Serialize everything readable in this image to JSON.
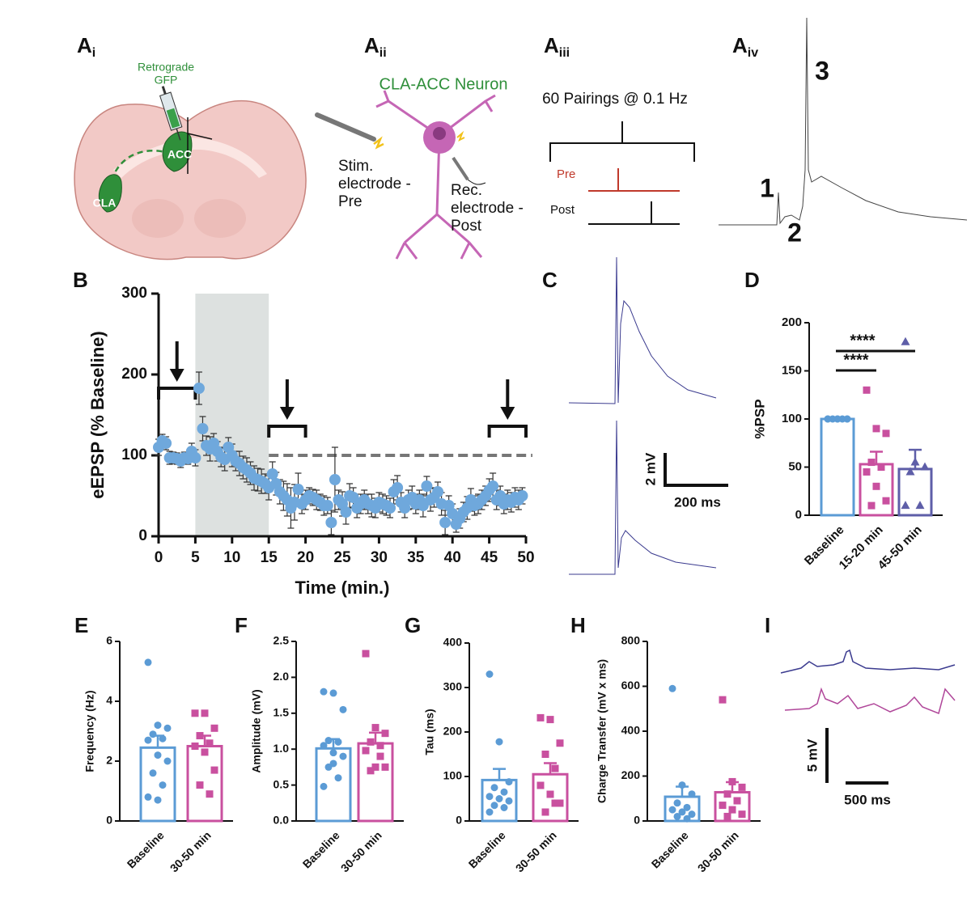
{
  "panels": [
    {
      "label": "A",
      "sub": "i"
    },
    {
      "label": "A",
      "sub": "ii"
    },
    {
      "label": "A",
      "sub": "iii"
    },
    {
      "label": "A",
      "sub": "iv"
    },
    {
      "label": "B"
    },
    {
      "label": "C"
    },
    {
      "label": "D"
    },
    {
      "label": "E"
    },
    {
      "label": "F"
    },
    {
      "label": "G"
    },
    {
      "label": "H"
    },
    {
      "label": "I"
    }
  ],
  "diagram": {
    "retrograde": "Retrograde",
    "gfp": "GFP",
    "acc": "ACC",
    "cla": "CLA",
    "neuron": "CLA-ACC Neuron",
    "stim": [
      "Stim.",
      "electrode -",
      "Pre"
    ],
    "rec": [
      "Rec.",
      "electrode -",
      "Post"
    ],
    "pairings": "60 Pairings @ 0.1 Hz",
    "pre": "Pre",
    "post": "Post",
    "trace_labels": [
      "1",
      "2",
      "3"
    ]
  },
  "scale_bars": {
    "c": [
      "2 mV",
      "200 ms"
    ],
    "i": [
      "5 mV",
      "500 ms"
    ]
  },
  "chart_data": [
    {
      "type": "scatter",
      "ylabel": "eEPSP (% Baseline)",
      "xlabel": "Time (min.)",
      "color": "#6fa8dc",
      "x": [
        0,
        0.5,
        1,
        1.5,
        2,
        2.5,
        3,
        3.5,
        4,
        4.5,
        5,
        5.5,
        6,
        6.5,
        7,
        7.5,
        8,
        8.5,
        9,
        9.5,
        10,
        10.5,
        11,
        11.5,
        12,
        12.5,
        13,
        13.5,
        14,
        14.5,
        15,
        15.5,
        16,
        16.5,
        17,
        17.5,
        18,
        18.5,
        19,
        19.5,
        20,
        20.5,
        21,
        21.5,
        22,
        22.5,
        23,
        23.5,
        24,
        24.5,
        25,
        25.5,
        26,
        26.5,
        27,
        27.5,
        28,
        28.5,
        29,
        29.5,
        30,
        30.5,
        31,
        31.5,
        32,
        32.5,
        33,
        33.5,
        34,
        34.5,
        35,
        35.5,
        36,
        36.5,
        37,
        37.5,
        38,
        38.5,
        39,
        39.5,
        40,
        40.5,
        41,
        41.5,
        42,
        42.5,
        43,
        43.5,
        44,
        44.5,
        45,
        45.5,
        46,
        46.5,
        47,
        47.5,
        48,
        48.5,
        49,
        49.5
      ],
      "values": [
        110,
        118,
        115,
        97,
        97,
        96,
        93,
        97,
        96,
        105,
        97,
        183,
        133,
        112,
        108,
        115,
        105,
        98,
        95,
        110,
        100,
        93,
        90,
        85,
        82,
        78,
        72,
        70,
        68,
        65,
        60,
        77,
        65,
        55,
        50,
        45,
        35,
        42,
        58,
        40,
        45,
        50,
        48,
        45,
        42,
        38,
        38,
        17,
        70,
        45,
        40,
        30,
        50,
        48,
        35,
        40,
        45,
        40,
        38,
        35,
        42,
        40,
        38,
        35,
        55,
        60,
        42,
        35,
        45,
        48,
        40,
        45,
        38,
        62,
        45,
        48,
        55,
        40,
        17,
        38,
        28,
        15,
        22,
        30,
        35,
        45,
        38,
        40,
        45,
        50,
        57,
        62,
        45,
        50,
        40,
        45,
        42,
        48,
        45,
        50
      ],
      "errors": [
        10,
        8,
        8,
        8,
        7,
        7,
        8,
        7,
        7,
        10,
        10,
        20,
        15,
        12,
        15,
        12,
        12,
        12,
        14,
        12,
        14,
        12,
        15,
        14,
        15,
        14,
        15,
        14,
        15,
        12,
        15,
        15,
        14,
        15,
        18,
        20,
        25,
        22,
        20,
        12,
        12,
        10,
        10,
        12,
        10,
        12,
        10,
        15,
        40,
        12,
        15,
        15,
        15,
        12,
        12,
        12,
        12,
        12,
        14,
        12,
        12,
        12,
        12,
        12,
        15,
        15,
        12,
        12,
        12,
        14,
        12,
        12,
        14,
        12,
        14,
        12,
        12,
        14,
        15,
        12,
        12,
        10,
        12,
        12,
        14,
        14,
        12,
        12,
        12,
        12,
        14,
        16,
        12,
        12,
        12,
        12,
        12,
        12,
        12,
        10
      ],
      "xlim": [
        0,
        50
      ],
      "ylim": [
        0,
        300
      ],
      "xticks": [
        0,
        5,
        10,
        15,
        20,
        25,
        30,
        35,
        40,
        45,
        50
      ],
      "yticks": [
        0,
        100,
        200,
        300
      ],
      "reference_line": 100,
      "shaded": [
        5,
        15
      ],
      "brackets": [
        [
          0,
          5
        ],
        [
          15,
          20
        ],
        [
          45,
          50
        ]
      ]
    },
    {
      "type": "bar",
      "ylabel": "%PSP",
      "categories": [
        "Baseline",
        "15-20 min",
        "45-50 min"
      ],
      "values": [
        100,
        53,
        48
      ],
      "errors": [
        0,
        13,
        20
      ],
      "colors": [
        "#5b9bd5",
        "#c9509f",
        "#5e5ea8"
      ],
      "markers": [
        "circle",
        "square",
        "triangle"
      ],
      "points": [
        [
          100,
          100,
          100,
          100,
          100,
          100,
          100,
          100
        ],
        [
          130,
          90,
          85,
          55,
          50,
          45,
          30,
          15,
          10
        ],
        [
          180,
          55,
          50,
          45,
          10,
          10
        ]
      ],
      "ylim": [
        0,
        200
      ],
      "yticks": [
        0,
        50,
        100,
        150,
        200
      ],
      "significance": [
        {
          "label": "****",
          "from": 0,
          "to": 2
        },
        {
          "label": "****",
          "from": 0,
          "to": 1
        }
      ]
    },
    {
      "type": "bar",
      "ylabel": "Frequency (Hz)",
      "categories": [
        "Baseline",
        "30-50 min"
      ],
      "values": [
        2.45,
        2.5
      ],
      "errors": [
        0.4,
        0.35
      ],
      "colors": [
        "#5b9bd5",
        "#c9509f"
      ],
      "markers": [
        "circle",
        "square"
      ],
      "points": [
        [
          5.3,
          3.2,
          3.1,
          2.9,
          2.75,
          2.7,
          2.2,
          2.0,
          1.6,
          1.2,
          0.8,
          0.7
        ],
        [
          3.6,
          3.6,
          3.1,
          2.85,
          2.6,
          2.5,
          2.3,
          1.7,
          1.2,
          0.9
        ]
      ],
      "ylim": [
        0,
        6
      ],
      "yticks": [
        0,
        2,
        4,
        6
      ]
    },
    {
      "type": "bar",
      "ylabel": "Amplitude (mV)",
      "categories": [
        "Baseline",
        "30-50 min"
      ],
      "values": [
        1.01,
        1.08
      ],
      "errors": [
        0.13,
        0.15
      ],
      "colors": [
        "#5b9bd5",
        "#c9509f"
      ],
      "markers": [
        "circle",
        "square"
      ],
      "points": [
        [
          1.8,
          1.78,
          1.55,
          1.12,
          1.1,
          1.05,
          0.95,
          0.9,
          0.75,
          0.6,
          0.48,
          0.8
        ],
        [
          2.33,
          1.3,
          1.22,
          1.1,
          1.05,
          0.98,
          0.75,
          0.75,
          0.7,
          0.9
        ]
      ],
      "ylim": [
        0,
        2.5
      ],
      "yticks": [
        {
          "value": 0,
          "label": "0.0"
        },
        {
          "value": 0.5,
          "label": "0.5"
        },
        {
          "value": 1,
          "label": "1.0"
        },
        {
          "value": 1.5,
          "label": "1.5"
        },
        {
          "value": 2,
          "label": "2.0"
        },
        {
          "value": 2.5,
          "label": "2.5"
        }
      ]
    },
    {
      "type": "bar",
      "ylabel": "Tau (ms)",
      "categories": [
        "Baseline",
        "30-50 min"
      ],
      "values": [
        92,
        105
      ],
      "errors": [
        25,
        25
      ],
      "colors": [
        "#5b9bd5",
        "#c9509f"
      ],
      "markers": [
        "circle",
        "square"
      ],
      "points": [
        [
          330,
          178,
          88,
          75,
          65,
          55,
          50,
          45,
          35,
          30,
          20
        ],
        [
          232,
          228,
          175,
          150,
          118,
          80,
          60,
          40,
          20,
          40
        ]
      ],
      "ylim": [
        0,
        400
      ],
      "yticks": [
        0,
        100,
        200,
        300,
        400
      ]
    },
    {
      "type": "bar",
      "ylabel": "Charge Transfer (mV x ms)",
      "categories": [
        "Baseline",
        "30-50 min"
      ],
      "values": [
        108,
        128
      ],
      "errors": [
        45,
        45
      ],
      "colors": [
        "#5b9bd5",
        "#c9509f"
      ],
      "markers": [
        "circle",
        "square"
      ],
      "points": [
        [
          590,
          160,
          120,
          80,
          60,
          50,
          40,
          30,
          20,
          10
        ],
        [
          540,
          175,
          150,
          120,
          90,
          70,
          50,
          30,
          20
        ]
      ],
      "ylim": [
        0,
        800
      ],
      "yticks": [
        0,
        200,
        400,
        600,
        800
      ]
    }
  ]
}
